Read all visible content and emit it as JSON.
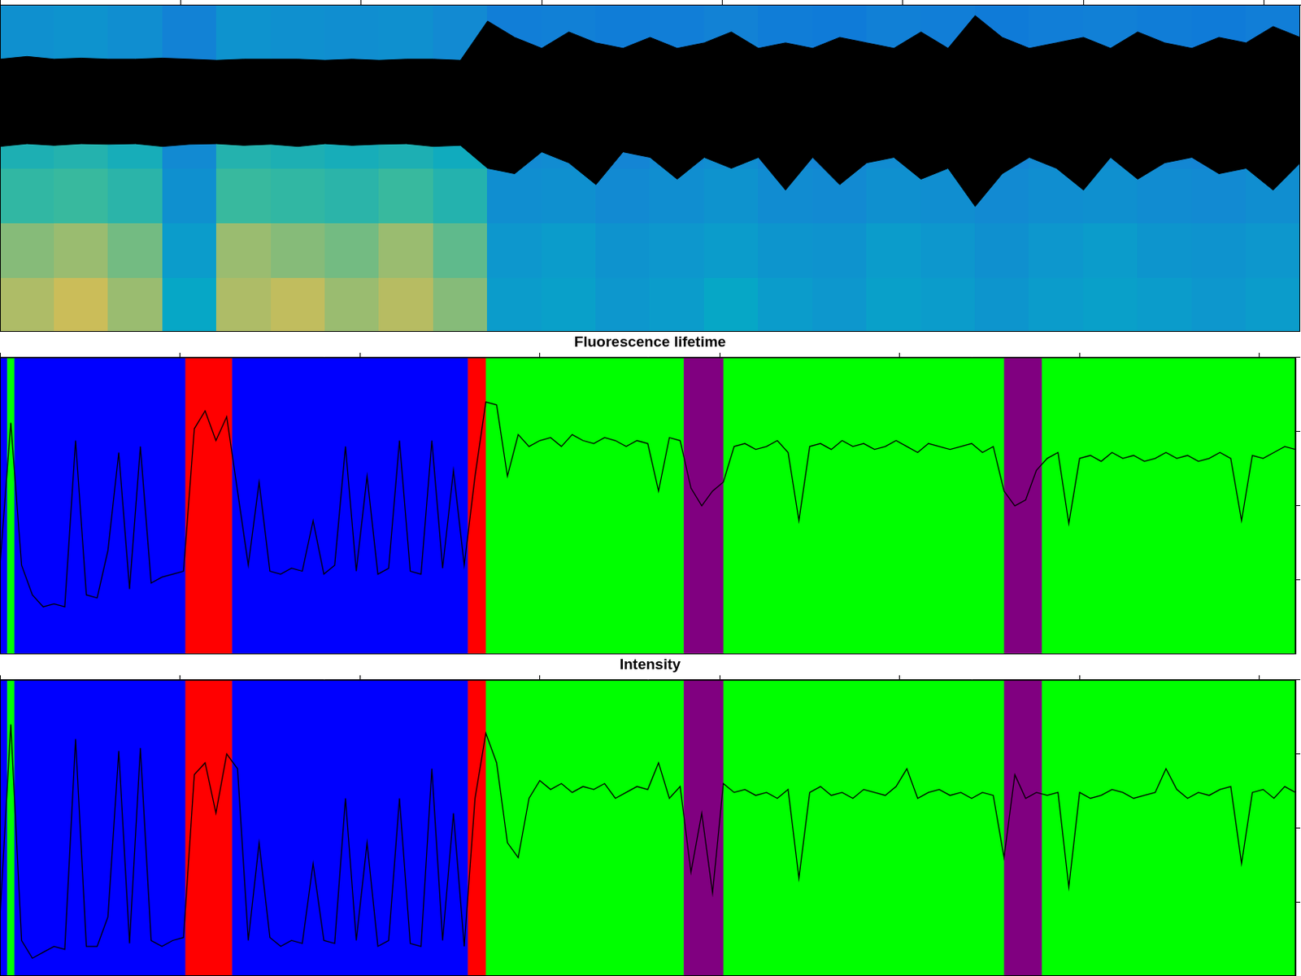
{
  "chart_data": [
    {
      "type": "heatmap",
      "xlim": [
        0,
        7.2
      ],
      "xticks": [
        0,
        1,
        2,
        3,
        4,
        5,
        6,
        7
      ],
      "ylim": [
        0,
        6
      ],
      "clim": [
        0,
        1
      ],
      "tick_labels": false,
      "grid": false,
      "cells": [
        [
          0.82,
          0.85,
          0.8,
          0.55,
          0.82,
          0.84,
          0.8,
          0.83,
          0.78,
          0.5,
          0.52,
          0.48,
          0.5,
          0.55,
          0.5,
          0.48,
          0.52,
          0.5,
          0.47,
          0.5,
          0.52,
          0.5,
          0.48,
          0.5
        ],
        [
          0.78,
          0.8,
          0.76,
          0.5,
          0.8,
          0.78,
          0.76,
          0.8,
          0.74,
          0.48,
          0.5,
          0.46,
          0.48,
          0.5,
          0.47,
          0.46,
          0.5,
          0.48,
          0.45,
          0.48,
          0.5,
          0.47,
          0.46,
          0.48
        ],
        [
          0.68,
          0.7,
          0.66,
          0.45,
          0.7,
          0.68,
          0.66,
          0.7,
          0.64,
          0.44,
          0.45,
          0.42,
          0.44,
          0.46,
          0.43,
          0.42,
          0.45,
          0.44,
          0.42,
          0.44,
          0.45,
          0.43,
          0.42,
          0.44
        ],
        [
          0.62,
          0.64,
          0.6,
          0.42,
          0.64,
          0.62,
          0.6,
          0.62,
          0.58,
          0.42,
          0.43,
          0.4,
          0.42,
          0.44,
          0.41,
          0.4,
          0.43,
          0.42,
          0.4,
          0.42,
          0.43,
          0.41,
          0.4,
          0.42
        ],
        [
          0.5,
          0.52,
          0.48,
          0.4,
          0.52,
          0.5,
          0.48,
          0.5,
          0.46,
          0.38,
          0.4,
          0.37,
          0.38,
          0.4,
          0.37,
          0.36,
          0.4,
          0.38,
          0.36,
          0.38,
          0.4,
          0.37,
          0.36,
          0.38
        ],
        [
          0.45,
          0.46,
          0.44,
          0.38,
          0.46,
          0.45,
          0.44,
          0.45,
          0.42,
          0.36,
          0.37,
          0.35,
          0.36,
          0.38,
          0.35,
          0.34,
          0.37,
          0.36,
          0.34,
          0.36,
          0.37,
          0.35,
          0.34,
          0.36
        ]
      ],
      "y2lim": [
        -4.2,
        1.8
      ],
      "series": [
        {
          "type": "envelope",
          "color": "#000000",
          "axis": "y2",
          "x": [
            0,
            0.15,
            0.3,
            0.45,
            0.6,
            0.75,
            0.9,
            1.05,
            1.2,
            1.35,
            1.5,
            1.65,
            1.8,
            1.95,
            2.1,
            2.25,
            2.4,
            2.55,
            2.7,
            2.85,
            3,
            3.15,
            3.3,
            3.45,
            3.6,
            3.75,
            3.9,
            4.05,
            4.2,
            4.35,
            4.5,
            4.65,
            4.8,
            4.95,
            5.1,
            5.25,
            5.4,
            5.55,
            5.7,
            5.85,
            6,
            6.15,
            6.3,
            6.45,
            6.6,
            6.75,
            6.9,
            7.05,
            7.2
          ],
          "upper": [
            0.8,
            0.85,
            0.8,
            0.82,
            0.8,
            0.8,
            0.82,
            0.8,
            0.78,
            0.8,
            0.8,
            0.8,
            0.78,
            0.8,
            0.78,
            0.8,
            0.8,
            0.78,
            1.5,
            1.2,
            1.0,
            1.3,
            1.1,
            1.0,
            1.2,
            1.0,
            1.1,
            1.3,
            1.0,
            1.1,
            1.0,
            1.2,
            1.1,
            1.0,
            1.3,
            1.0,
            1.6,
            1.2,
            1.0,
            1.1,
            1.2,
            1.0,
            1.3,
            1.1,
            1.0,
            1.2,
            1.1,
            1.4,
            1.2
          ],
          "lower": [
            -0.8,
            -0.75,
            -0.78,
            -0.75,
            -0.76,
            -0.75,
            -0.8,
            -0.76,
            -0.75,
            -0.78,
            -0.76,
            -0.8,
            -0.75,
            -0.78,
            -0.76,
            -0.75,
            -0.8,
            -0.78,
            -1.2,
            -1.3,
            -0.9,
            -1.1,
            -1.5,
            -0.9,
            -1.0,
            -1.4,
            -1.0,
            -1.2,
            -1.0,
            -1.6,
            -1.0,
            -1.5,
            -1.1,
            -1.0,
            -1.4,
            -1.2,
            -1.9,
            -1.3,
            -1.0,
            -1.2,
            -1.6,
            -1.0,
            -1.4,
            -1.1,
            -1.0,
            -1.3,
            -1.2,
            -1.6,
            -1.1
          ]
        }
      ]
    },
    {
      "type": "line",
      "title": "Fluorescence lifetime",
      "xlim": [
        0,
        7.2
      ],
      "xticks": [
        0,
        1,
        2,
        3,
        4,
        5,
        6,
        7
      ],
      "ylim": [
        0,
        1
      ],
      "yticks": [
        0,
        0.25,
        0.5,
        0.75,
        1
      ],
      "tick_labels": false,
      "grid": false,
      "states": [
        {
          "start": 0,
          "end": 0.04,
          "color": "#0000ff"
        },
        {
          "start": 0.04,
          "end": 0.08,
          "color": "#00ff00"
        },
        {
          "start": 0.08,
          "end": 1.03,
          "color": "#0000ff"
        },
        {
          "start": 1.03,
          "end": 1.29,
          "color": "#ff0000"
        },
        {
          "start": 1.29,
          "end": 2.6,
          "color": "#0000ff"
        },
        {
          "start": 2.6,
          "end": 2.7,
          "color": "#ff0000"
        },
        {
          "start": 2.7,
          "end": 3.8,
          "color": "#00ff00"
        },
        {
          "start": 3.8,
          "end": 4.02,
          "color": "#800080"
        },
        {
          "start": 4.02,
          "end": 5.58,
          "color": "#00ff00"
        },
        {
          "start": 5.58,
          "end": 5.79,
          "color": "#800080"
        },
        {
          "start": 5.79,
          "end": 7.2,
          "color": "#00ff00"
        }
      ],
      "x": [
        0,
        0.06,
        0.12,
        0.18,
        0.24,
        0.3,
        0.36,
        0.42,
        0.48,
        0.54,
        0.6,
        0.66,
        0.72,
        0.78,
        0.84,
        0.9,
        0.96,
        1.02,
        1.08,
        1.14,
        1.2,
        1.26,
        1.32,
        1.38,
        1.44,
        1.5,
        1.56,
        1.62,
        1.68,
        1.74,
        1.8,
        1.86,
        1.92,
        1.98,
        2.04,
        2.1,
        2.16,
        2.22,
        2.28,
        2.34,
        2.4,
        2.46,
        2.52,
        2.58,
        2.64,
        2.7,
        2.76,
        2.82,
        2.88,
        2.94,
        3,
        3.06,
        3.12,
        3.18,
        3.24,
        3.3,
        3.36,
        3.42,
        3.48,
        3.54,
        3.6,
        3.66,
        3.72,
        3.78,
        3.84,
        3.9,
        3.96,
        4.02,
        4.08,
        4.14,
        4.2,
        4.26,
        4.32,
        4.38,
        4.44,
        4.5,
        4.56,
        4.62,
        4.68,
        4.74,
        4.8,
        4.86,
        4.92,
        4.98,
        5.04,
        5.1,
        5.16,
        5.22,
        5.28,
        5.34,
        5.4,
        5.46,
        5.52,
        5.58,
        5.64,
        5.7,
        5.76,
        5.82,
        5.88,
        5.94,
        6,
        6.06,
        6.12,
        6.18,
        6.24,
        6.3,
        6.36,
        6.42,
        6.48,
        6.54,
        6.6,
        6.66,
        6.72,
        6.78,
        6.84,
        6.9,
        6.96,
        7.02,
        7.08,
        7.14,
        7.2
      ],
      "series": [
        {
          "color": "#000000",
          "values": [
            0.3,
            0.78,
            0.3,
            0.2,
            0.16,
            0.17,
            0.16,
            0.72,
            0.2,
            0.19,
            0.35,
            0.68,
            0.22,
            0.7,
            0.24,
            0.26,
            0.27,
            0.28,
            0.76,
            0.82,
            0.72,
            0.8,
            0.55,
            0.3,
            0.58,
            0.28,
            0.27,
            0.29,
            0.28,
            0.45,
            0.27,
            0.3,
            0.7,
            0.28,
            0.6,
            0.27,
            0.29,
            0.72,
            0.28,
            0.27,
            0.72,
            0.29,
            0.62,
            0.3,
            0.6,
            0.85,
            0.84,
            0.6,
            0.74,
            0.7,
            0.72,
            0.73,
            0.7,
            0.74,
            0.72,
            0.71,
            0.73,
            0.72,
            0.7,
            0.72,
            0.71,
            0.55,
            0.73,
            0.72,
            0.56,
            0.5,
            0.55,
            0.58,
            0.7,
            0.71,
            0.69,
            0.7,
            0.72,
            0.68,
            0.45,
            0.7,
            0.71,
            0.69,
            0.72,
            0.7,
            0.71,
            0.69,
            0.7,
            0.72,
            0.7,
            0.68,
            0.71,
            0.7,
            0.69,
            0.7,
            0.71,
            0.68,
            0.7,
            0.55,
            0.5,
            0.52,
            0.62,
            0.66,
            0.68,
            0.44,
            0.66,
            0.67,
            0.65,
            0.68,
            0.66,
            0.67,
            0.65,
            0.66,
            0.68,
            0.66,
            0.67,
            0.65,
            0.66,
            0.68,
            0.66,
            0.45,
            0.67,
            0.66,
            0.68,
            0.7,
            0.69
          ]
        }
      ]
    },
    {
      "type": "line",
      "title": "Intensity",
      "xlim": [
        0,
        7.2
      ],
      "xticks": [
        0,
        1,
        2,
        3,
        4,
        5,
        6,
        7
      ],
      "ylim": [
        0,
        1
      ],
      "yticks": [
        0,
        0.25,
        0.5,
        0.75,
        1
      ],
      "tick_labels": false,
      "grid": false,
      "states": [
        {
          "start": 0,
          "end": 0.04,
          "color": "#0000ff"
        },
        {
          "start": 0.04,
          "end": 0.08,
          "color": "#00ff00"
        },
        {
          "start": 0.08,
          "end": 1.03,
          "color": "#0000ff"
        },
        {
          "start": 1.03,
          "end": 1.29,
          "color": "#ff0000"
        },
        {
          "start": 1.29,
          "end": 2.6,
          "color": "#0000ff"
        },
        {
          "start": 2.6,
          "end": 2.7,
          "color": "#ff0000"
        },
        {
          "start": 2.7,
          "end": 3.8,
          "color": "#00ff00"
        },
        {
          "start": 3.8,
          "end": 4.02,
          "color": "#800080"
        },
        {
          "start": 4.02,
          "end": 5.58,
          "color": "#00ff00"
        },
        {
          "start": 5.58,
          "end": 5.79,
          "color": "#800080"
        },
        {
          "start": 5.79,
          "end": 7.2,
          "color": "#00ff00"
        }
      ],
      "x": [
        0,
        0.06,
        0.12,
        0.18,
        0.24,
        0.3,
        0.36,
        0.42,
        0.48,
        0.54,
        0.6,
        0.66,
        0.72,
        0.78,
        0.84,
        0.9,
        0.96,
        1.02,
        1.08,
        1.14,
        1.2,
        1.26,
        1.32,
        1.38,
        1.44,
        1.5,
        1.56,
        1.62,
        1.68,
        1.74,
        1.8,
        1.86,
        1.92,
        1.98,
        2.04,
        2.1,
        2.16,
        2.22,
        2.28,
        2.34,
        2.4,
        2.46,
        2.52,
        2.58,
        2.64,
        2.7,
        2.76,
        2.82,
        2.88,
        2.94,
        3,
        3.06,
        3.12,
        3.18,
        3.24,
        3.3,
        3.36,
        3.42,
        3.48,
        3.54,
        3.6,
        3.66,
        3.72,
        3.78,
        3.84,
        3.9,
        3.96,
        4.02,
        4.08,
        4.14,
        4.2,
        4.26,
        4.32,
        4.38,
        4.44,
        4.5,
        4.56,
        4.62,
        4.68,
        4.74,
        4.8,
        4.86,
        4.92,
        4.98,
        5.04,
        5.1,
        5.16,
        5.22,
        5.28,
        5.34,
        5.4,
        5.46,
        5.52,
        5.58,
        5.64,
        5.7,
        5.76,
        5.82,
        5.88,
        5.94,
        6,
        6.06,
        6.12,
        6.18,
        6.24,
        6.3,
        6.36,
        6.42,
        6.48,
        6.54,
        6.6,
        6.66,
        6.72,
        6.78,
        6.84,
        6.9,
        6.96,
        7.02,
        7.08,
        7.14,
        7.2
      ],
      "series": [
        {
          "color": "#000000",
          "values": [
            0.2,
            0.85,
            0.12,
            0.06,
            0.08,
            0.1,
            0.09,
            0.8,
            0.1,
            0.1,
            0.2,
            0.76,
            0.11,
            0.77,
            0.12,
            0.1,
            0.12,
            0.13,
            0.68,
            0.72,
            0.55,
            0.75,
            0.7,
            0.12,
            0.45,
            0.13,
            0.1,
            0.12,
            0.11,
            0.38,
            0.12,
            0.11,
            0.6,
            0.12,
            0.45,
            0.1,
            0.12,
            0.6,
            0.11,
            0.1,
            0.7,
            0.12,
            0.55,
            0.1,
            0.6,
            0.82,
            0.72,
            0.45,
            0.4,
            0.6,
            0.66,
            0.63,
            0.65,
            0.62,
            0.64,
            0.63,
            0.65,
            0.6,
            0.62,
            0.64,
            0.63,
            0.72,
            0.6,
            0.64,
            0.35,
            0.55,
            0.28,
            0.65,
            0.62,
            0.63,
            0.61,
            0.62,
            0.6,
            0.63,
            0.33,
            0.62,
            0.64,
            0.61,
            0.62,
            0.6,
            0.63,
            0.62,
            0.61,
            0.64,
            0.7,
            0.6,
            0.62,
            0.63,
            0.61,
            0.62,
            0.6,
            0.62,
            0.61,
            0.4,
            0.68,
            0.6,
            0.62,
            0.61,
            0.62,
            0.3,
            0.62,
            0.6,
            0.61,
            0.63,
            0.62,
            0.6,
            0.61,
            0.62,
            0.7,
            0.63,
            0.6,
            0.62,
            0.61,
            0.63,
            0.64,
            0.38,
            0.62,
            0.63,
            0.6,
            0.64,
            0.62
          ]
        }
      ]
    }
  ]
}
